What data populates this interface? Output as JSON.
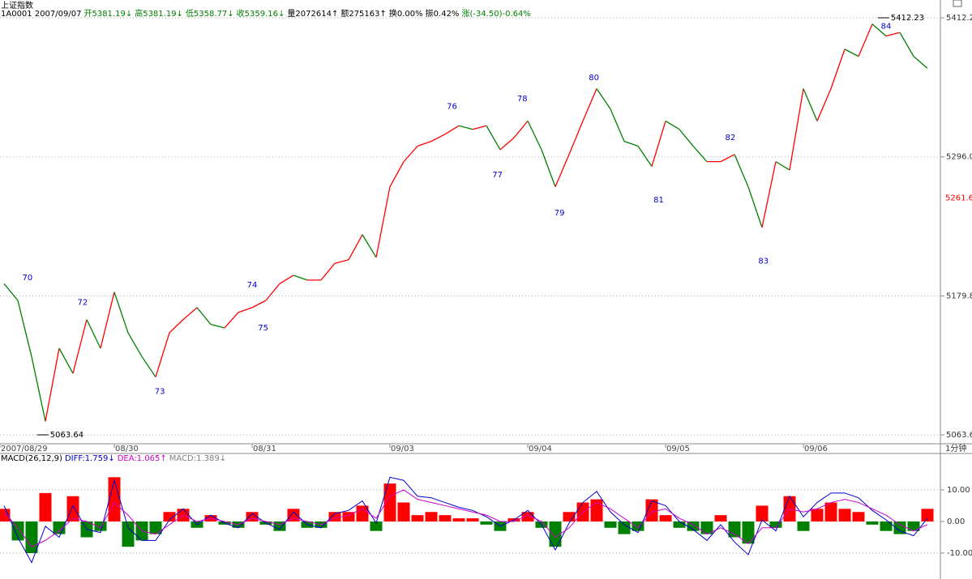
{
  "chart_data": [
    {
      "type": "line",
      "title": "上证指数",
      "info": [
        {
          "text": "1A0001 2007/09/07",
          "color": "#000000"
        },
        {
          "text": "开5381.19↓",
          "color": "#008000"
        },
        {
          "text": "高5381.19↓",
          "color": "#008000"
        },
        {
          "text": "低5358.77↓",
          "color": "#008000"
        },
        {
          "text": "收5359.16↓",
          "color": "#008000"
        },
        {
          "text": "量2072614↑",
          "color": "#000000"
        },
        {
          "text": "额275163↑",
          "color": "#000000"
        },
        {
          "text": "换0.00%",
          "color": "#000000"
        },
        {
          "text": "振0.42%",
          "color": "#000000"
        },
        {
          "text": "涨(-34.50)-0.64%",
          "color": "#008000"
        }
      ],
      "period": "1分钟",
      "categories": [
        "2007/08/29",
        null,
        null,
        null,
        null,
        null,
        null,
        null,
        "08/30",
        null,
        null,
        null,
        null,
        null,
        null,
        null,
        null,
        null,
        "08/31",
        null,
        null,
        null,
        null,
        null,
        null,
        null,
        null,
        null,
        "09/03",
        null,
        null,
        null,
        null,
        null,
        null,
        null,
        null,
        null,
        "09/04",
        null,
        null,
        null,
        null,
        null,
        null,
        null,
        null,
        null,
        "09/05",
        null,
        null,
        null,
        null,
        null,
        null,
        null,
        null,
        null,
        "09/06",
        null,
        null,
        null,
        null,
        null,
        null,
        null,
        null,
        null
      ],
      "values": [
        5190,
        5176,
        5129,
        5075,
        5136,
        5115,
        5160,
        5136,
        5183,
        5149,
        5129,
        5112,
        5149,
        5160,
        5170,
        5156,
        5153,
        5166,
        5170,
        5176,
        5190,
        5197,
        5193,
        5193,
        5207,
        5210,
        5231,
        5212,
        5271,
        5292,
        5305,
        5309,
        5315,
        5322,
        5319,
        5322,
        5302,
        5312,
        5326,
        5302,
        5271,
        5298,
        5326,
        5353,
        5336,
        5309,
        5305,
        5288,
        5326,
        5319,
        5305,
        5292,
        5292,
        5298,
        5271,
        5237,
        5292,
        5285,
        5353,
        5326,
        5353,
        5386,
        5380,
        5407,
        5397,
        5400,
        5380,
        5370
      ],
      "up_color": "#ff0000",
      "down_color": "#008000",
      "ylim": [
        5056.2,
        5419.0
      ],
      "yticks": [
        5063.6,
        5179.8,
        {
          "value": 5296,
          "label": "5296.0"
        },
        5412.2
      ],
      "grid": true,
      "cursor_value": 5261.6,
      "extremes": [
        {
          "value": 5063.64,
          "at": 2.4
        },
        {
          "value": 5412.23,
          "at": 63.4
        }
      ],
      "annotations": [
        {
          "text": "70",
          "at": 1.7,
          "y": 5195
        },
        {
          "text": "72",
          "at": 5.7,
          "y": 5174.4
        },
        {
          "text": "73",
          "at": 11.3,
          "y": 5100
        },
        {
          "text": "74",
          "at": 18,
          "y": 5189
        },
        {
          "text": "75",
          "at": 18.8,
          "y": 5153
        },
        {
          "text": "76",
          "at": 32.5,
          "y": 5338
        },
        {
          "text": "77",
          "at": 35.8,
          "y": 5281
        },
        {
          "text": "78",
          "at": 37.6,
          "y": 5344.5
        },
        {
          "text": "79",
          "at": 40.3,
          "y": 5249
        },
        {
          "text": "80",
          "at": 42.8,
          "y": 5362
        },
        {
          "text": "81",
          "at": 47.5,
          "y": 5260
        },
        {
          "text": "82",
          "at": 52.7,
          "y": 5312
        },
        {
          "text": "83",
          "at": 55.1,
          "y": 5209
        },
        {
          "text": "84",
          "at": 64,
          "y": 5405
        }
      ]
    },
    {
      "type": "macd",
      "legend": [
        {
          "text": "MACD(26,12,9)",
          "color": "#000000"
        },
        {
          "text": "DIFF:1.759↓",
          "color": "#0000cc"
        },
        {
          "text": "DEA:1.065↑",
          "color": "#cc00cc"
        },
        {
          "text": "MACD:1.389↓",
          "color": "#808080"
        }
      ],
      "values": [
        4,
        -6,
        -10,
        9,
        -4,
        8,
        -5,
        -3,
        14,
        -8,
        -6,
        -4,
        3,
        4,
        -2,
        2,
        -1,
        -2,
        3,
        -1,
        -3,
        4,
        -2,
        -2,
        3,
        3,
        5,
        -3,
        12,
        6,
        2,
        3,
        2,
        1,
        1,
        -1,
        -3,
        1,
        3,
        -2,
        -8,
        3,
        6,
        7,
        -2,
        -4,
        -3,
        7,
        2,
        -2,
        -3,
        -4,
        2,
        -5,
        -7,
        5,
        -2,
        8,
        -3,
        4,
        6,
        4,
        3,
        -1,
        -3,
        -4,
        -3,
        4
      ],
      "up_color": "#ff0000",
      "down_color": "#008000",
      "series": [
        {
          "color": "#0000cc",
          "values": [
            5,
            -5,
            -13,
            -1.5,
            -5,
            5,
            -2.5,
            -3.5,
            13,
            -2,
            -6,
            -6,
            0.5,
            4,
            -1,
            2,
            -0.5,
            -2,
            2.5,
            -0.5,
            -2.5,
            3,
            -1,
            -2,
            2.5,
            3.5,
            6.5,
            -0.5,
            14,
            13,
            8,
            7.5,
            6,
            4.5,
            3.5,
            1.5,
            -1.5,
            0.5,
            3.5,
            -1,
            -9,
            -0.5,
            6,
            9.5,
            3,
            -1,
            -3.5,
            6.5,
            5,
            0,
            -2.5,
            -6,
            -1,
            -6.5,
            -10.5,
            0.5,
            -3,
            8,
            1.5,
            6,
            9,
            9,
            7.5,
            3.5,
            0.5,
            -3,
            -4.5,
            1
          ]
        },
        {
          "color": "#cc00cc",
          "values": [
            3,
            -2,
            -8,
            -6,
            -3,
            1,
            0,
            -2,
            6,
            2,
            -3,
            -4,
            -1,
            2,
            0,
            1,
            0,
            -1,
            1,
            0,
            -1,
            1,
            0,
            -1,
            1,
            2,
            4,
            1,
            8,
            10,
            7,
            6,
            5,
            4,
            3,
            2,
            0,
            0,
            2,
            0,
            -5,
            -2,
            3,
            6,
            4,
            1,
            -2,
            3,
            4,
            1,
            -1,
            -4,
            -2,
            -4,
            -7,
            -2,
            -2,
            4,
            3,
            4,
            6,
            7,
            6,
            4,
            2,
            -1,
            -3,
            -1
          ]
        }
      ],
      "ylim": [
        -18.2,
        21
      ],
      "yticks": [
        {
          "value": 10,
          "label": "10.00"
        },
        {
          "value": 0,
          "label": "0.00"
        },
        {
          "value": -10,
          "label": "-10.00"
        }
      ],
      "grid": true
    }
  ]
}
